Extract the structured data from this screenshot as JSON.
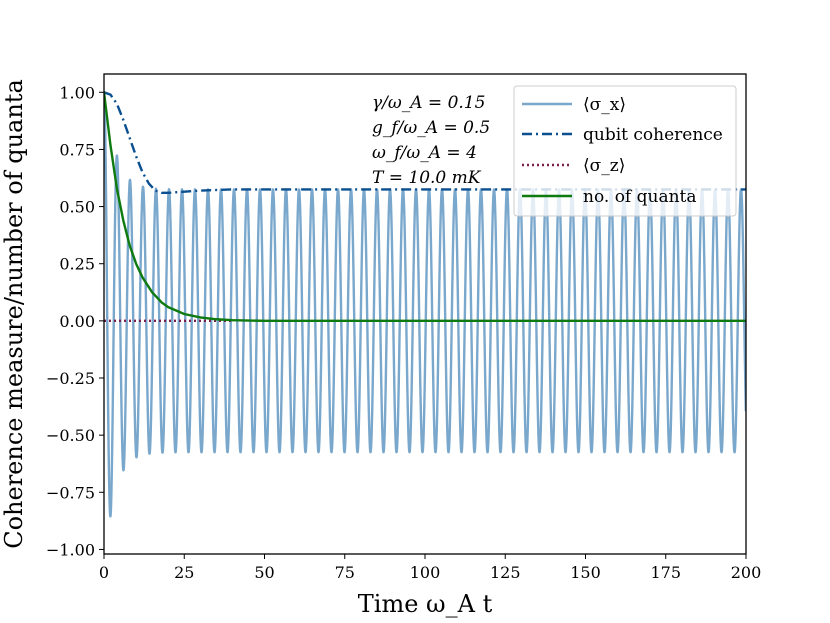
{
  "chart_data": {
    "type": "line",
    "xlabel": "Time ω_A t",
    "ylabel": "Coherence measure/number of quanta",
    "xlim": [
      0,
      200
    ],
    "ylim": [
      -1.02,
      1.08
    ],
    "x_ticks": [
      0,
      25,
      50,
      75,
      100,
      125,
      150,
      175,
      200
    ],
    "y_ticks": [
      -1.0,
      -0.75,
      -0.5,
      -0.25,
      0.0,
      0.25,
      0.5,
      0.75,
      1.0
    ],
    "x_tick_labels": [
      "0",
      "25",
      "50",
      "75",
      "100",
      "125",
      "150",
      "175",
      "200"
    ],
    "y_tick_labels": [
      "−1.00",
      "−0.75",
      "−0.50",
      "−0.25",
      "0.00",
      "0.25",
      "0.50",
      "0.75",
      "1.00"
    ],
    "annotations": [
      "γ/ω_A = 0.15",
      "g_f/ω_A = 0.5",
      "ω_f/ω_A = 4",
      "T = 10.0 mK"
    ],
    "legend_position": "top-right",
    "series": [
      {
        "name": "⟨σ_x⟩",
        "style": "solid",
        "color": "#7aa7cc",
        "description": "oscillation with period ~4.05 whose envelope decays from 1.0 to steady amplitude ~0.57",
        "period": 4.05,
        "initial_amplitude": 1.0,
        "steady_amplitude": 0.575,
        "first_minimum": [
          2.0,
          -0.92
        ]
      },
      {
        "name": "qubit coherence",
        "style": "dash-dot",
        "color": "#0a4f8f",
        "x": [
          0,
          2,
          4,
          6,
          8,
          10,
          12,
          14,
          16,
          18,
          20,
          25,
          30,
          40,
          60,
          100,
          200
        ],
        "y": [
          1.0,
          0.99,
          0.95,
          0.88,
          0.8,
          0.72,
          0.65,
          0.6,
          0.57,
          0.56,
          0.56,
          0.565,
          0.57,
          0.575,
          0.575,
          0.575,
          0.575
        ]
      },
      {
        "name": "⟨σ_z⟩",
        "style": "dotted",
        "color": "#7a1f4a",
        "x": [
          0,
          40
        ],
        "y": [
          0.0,
          0.0
        ]
      },
      {
        "name": "no. of quanta",
        "style": "solid",
        "color": "#0f7a0f",
        "x": [
          0,
          2,
          4,
          6,
          8,
          10,
          12,
          15,
          18,
          20,
          25,
          30,
          35,
          40,
          50,
          100,
          200
        ],
        "y": [
          1.0,
          0.77,
          0.58,
          0.44,
          0.33,
          0.25,
          0.19,
          0.125,
          0.08,
          0.06,
          0.03,
          0.015,
          0.007,
          0.003,
          0.0,
          0.0,
          0.0
        ]
      }
    ]
  }
}
